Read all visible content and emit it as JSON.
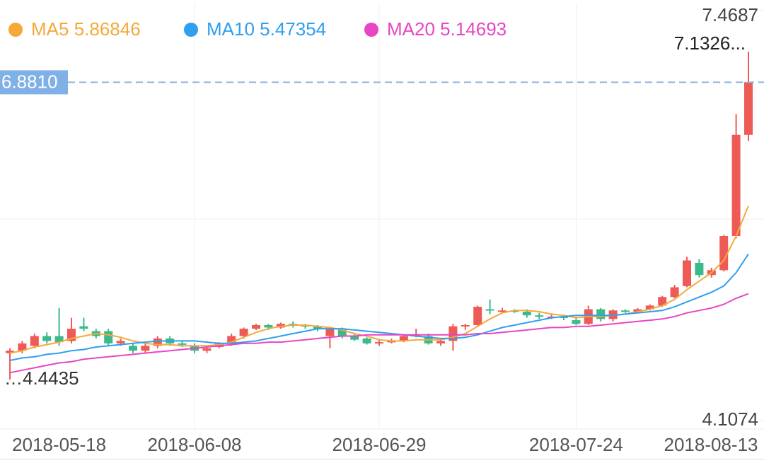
{
  "chart_data": {
    "type": "candlestick",
    "categories": [
      null,
      null,
      null,
      null,
      "2018-05-18",
      null,
      null,
      null,
      null,
      null,
      null,
      null,
      null,
      null,
      null,
      "2018-06-08",
      null,
      null,
      null,
      null,
      null,
      null,
      null,
      null,
      null,
      null,
      null,
      null,
      null,
      null,
      "2018-06-29",
      null,
      null,
      null,
      null,
      null,
      null,
      null,
      null,
      null,
      null,
      null,
      null,
      null,
      null,
      null,
      "2018-07-24",
      null,
      null,
      null,
      null,
      null,
      null,
      null,
      null,
      null,
      null,
      "2018-08-13",
      null,
      null,
      null
    ],
    "open": [
      4.66,
      4.68,
      4.72,
      4.8,
      4.8,
      4.76,
      4.88,
      4.84,
      4.84,
      4.74,
      4.72,
      4.68,
      4.72,
      4.78,
      4.74,
      4.72,
      4.68,
      4.71,
      4.74,
      4.8,
      4.86,
      4.89,
      4.87,
      4.9,
      4.89,
      4.88,
      4.8,
      4.86,
      4.8,
      4.78,
      4.74,
      4.76,
      4.76,
      4.8,
      4.8,
      4.74,
      4.76,
      4.88,
      4.89,
      5.02,
      5.01,
      5.01,
      5.0,
      4.97,
      4.96,
      4.96,
      4.93,
      4.9,
      5.02,
      4.94,
      5.01,
      5.0,
      5.02,
      5.05,
      5.12,
      5.21,
      5.4,
      5.3,
      5.34,
      5.62,
      6.45
    ],
    "close": [
      4.68,
      4.74,
      4.8,
      4.76,
      4.75,
      4.86,
      4.86,
      4.8,
      4.74,
      4.76,
      4.68,
      4.72,
      4.78,
      4.74,
      4.73,
      4.68,
      4.7,
      4.74,
      4.8,
      4.86,
      4.89,
      4.87,
      4.9,
      4.89,
      4.88,
      4.86,
      4.86,
      4.8,
      4.77,
      4.74,
      4.75,
      4.76,
      4.8,
      4.81,
      4.74,
      4.76,
      4.88,
      4.89,
      5.04,
      5.01,
      5.01,
      5.0,
      4.97,
      4.96,
      4.96,
      4.95,
      4.9,
      5.02,
      4.94,
      5.01,
      5.0,
      5.02,
      5.05,
      5.12,
      5.2,
      5.42,
      5.3,
      5.34,
      5.62,
      6.45,
      6.881
    ],
    "low": [
      4.4435,
      4.66,
      4.7,
      4.74,
      4.72,
      4.74,
      4.84,
      4.78,
      4.72,
      4.72,
      4.66,
      4.66,
      4.7,
      4.72,
      4.71,
      4.66,
      4.66,
      4.7,
      4.72,
      4.78,
      4.85,
      4.85,
      4.86,
      4.87,
      4.86,
      4.84,
      4.7,
      4.78,
      4.76,
      4.73,
      4.72,
      4.74,
      4.75,
      4.79,
      4.73,
      4.72,
      4.68,
      4.85,
      4.88,
      4.98,
      4.99,
      4.99,
      4.95,
      4.94,
      4.94,
      4.93,
      4.89,
      4.89,
      4.92,
      4.92,
      4.99,
      4.99,
      5.01,
      5.04,
      5.11,
      5.2,
      5.28,
      5.28,
      5.33,
      5.6,
      6.4
    ],
    "high": [
      4.7,
      4.76,
      4.82,
      4.83,
      5.03,
      4.95,
      4.95,
      4.86,
      4.86,
      4.78,
      4.74,
      4.74,
      4.8,
      4.8,
      4.76,
      4.74,
      4.71,
      4.75,
      4.82,
      4.87,
      4.9,
      4.9,
      4.91,
      4.92,
      4.9,
      4.89,
      4.87,
      4.87,
      4.82,
      4.79,
      4.77,
      4.78,
      4.81,
      4.86,
      4.82,
      4.78,
      4.9,
      4.9,
      5.05,
      5.1,
      5.03,
      5.02,
      5.02,
      4.99,
      4.98,
      4.97,
      4.96,
      5.05,
      5.03,
      5.02,
      5.02,
      5.03,
      5.06,
      5.13,
      5.22,
      5.45,
      5.43,
      5.36,
      5.63,
      6.62,
      7.1326
    ],
    "up_color": "#ee5a55",
    "down_color": "#3bb98b",
    "series": [
      {
        "name": "MA5",
        "color": "#f5a93a",
        "values": [
          4.66,
          4.68,
          4.71,
          4.73,
          4.75,
          4.78,
          4.8,
          4.82,
          4.81,
          4.79,
          4.76,
          4.74,
          4.73,
          4.73,
          4.72,
          4.72,
          4.72,
          4.73,
          4.75,
          4.79,
          4.83,
          4.86,
          4.88,
          4.89,
          4.89,
          4.88,
          4.87,
          4.85,
          4.82,
          4.8,
          4.77,
          4.76,
          4.76,
          4.77,
          4.77,
          4.77,
          4.79,
          4.82,
          4.88,
          4.94,
          4.99,
          5.01,
          5.01,
          5.0,
          4.98,
          4.97,
          4.95,
          4.96,
          4.96,
          4.97,
          4.98,
          5.0,
          5.02,
          5.05,
          5.1,
          5.18,
          5.25,
          5.32,
          5.42,
          5.62,
          5.86846
        ]
      },
      {
        "name": "MA10",
        "color": "#2f9ff0",
        "values": [
          4.6,
          4.62,
          4.63,
          4.65,
          4.66,
          4.68,
          4.69,
          4.71,
          4.72,
          4.73,
          4.74,
          4.75,
          4.76,
          4.76,
          4.76,
          4.76,
          4.75,
          4.74,
          4.74,
          4.75,
          4.76,
          4.78,
          4.8,
          4.82,
          4.84,
          4.86,
          4.86,
          4.86,
          4.85,
          4.84,
          4.83,
          4.82,
          4.81,
          4.8,
          4.79,
          4.78,
          4.78,
          4.79,
          4.81,
          4.84,
          4.87,
          4.89,
          4.91,
          4.93,
          4.95,
          4.96,
          4.97,
          4.97,
          4.97,
          4.97,
          4.98,
          4.99,
          5.0,
          5.01,
          5.04,
          5.08,
          5.12,
          5.16,
          5.21,
          5.32,
          5.47354
        ]
      },
      {
        "name": "MA20",
        "color": "#e846c4",
        "values": [
          4.5,
          4.52,
          4.54,
          4.56,
          4.58,
          4.59,
          4.61,
          4.62,
          4.63,
          4.64,
          4.65,
          4.66,
          4.67,
          4.68,
          4.69,
          4.7,
          4.71,
          4.72,
          4.73,
          4.74,
          4.74,
          4.75,
          4.75,
          4.76,
          4.77,
          4.78,
          4.79,
          4.8,
          4.8,
          4.81,
          4.81,
          4.81,
          4.81,
          4.81,
          4.81,
          4.81,
          4.81,
          4.81,
          4.82,
          4.82,
          4.83,
          4.84,
          4.85,
          4.86,
          4.87,
          4.87,
          4.88,
          4.88,
          4.89,
          4.9,
          4.91,
          4.92,
          4.93,
          4.94,
          4.96,
          4.99,
          5.01,
          5.03,
          5.06,
          5.11,
          5.14693
        ]
      }
    ],
    "ylim": [
      4.1074,
      7.4687
    ],
    "yticks": [
      4.1074,
      7.4687
    ],
    "crosshair": {
      "value": 6.881,
      "label": "6.8810"
    },
    "high_label": "7.1326...",
    "low_label": "…4.4435"
  }
}
